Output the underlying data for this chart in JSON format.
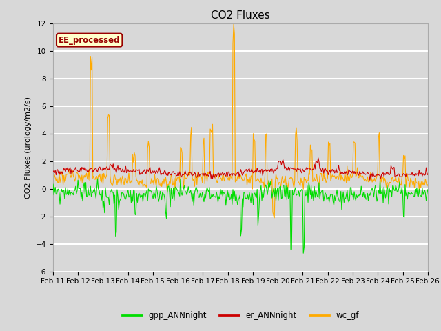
{
  "title": "CO2 Fluxes",
  "ylabel": "CO2 Fluxes (urology/m2/s)",
  "ylim": [
    -6,
    12
  ],
  "yticks": [
    -6,
    -4,
    -2,
    0,
    2,
    4,
    6,
    8,
    10,
    12
  ],
  "x_labels": [
    "Feb 11",
    "Feb 12",
    "Feb 13",
    "Feb 14",
    "Feb 15",
    "Feb 16",
    "Feb 17",
    "Feb 18",
    "Feb 19",
    "Feb 20",
    "Feb 21",
    "Feb 22",
    "Feb 23",
    "Feb 24",
    "Feb 25",
    "Feb 26"
  ],
  "n_points": 480,
  "background_color": "#d8d8d8",
  "axes_bg_color": "#d8d8d8",
  "grid_color": "#ffffff",
  "line_green": "#00dd00",
  "line_red": "#cc0000",
  "line_orange": "#ffaa00",
  "annotation_text": "EE_processed",
  "annotation_bg": "#ffffcc",
  "annotation_border": "#990000",
  "legend_labels": [
    "gpp_ANNnight",
    "er_ANNnight",
    "wc_gf"
  ],
  "legend_colors": [
    "#00dd00",
    "#cc0000",
    "#ffaa00"
  ],
  "title_fontsize": 11,
  "label_fontsize": 8,
  "tick_fontsize": 7.5
}
